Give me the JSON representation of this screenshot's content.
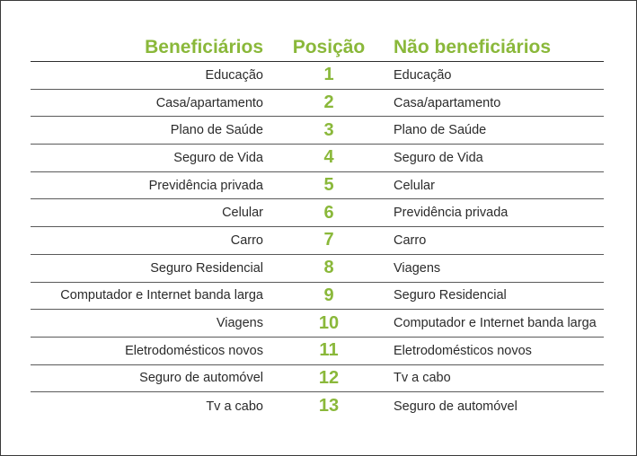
{
  "table": {
    "headers": {
      "left": "Beneficiários",
      "middle": "Posição",
      "right": "Não beneficiários"
    },
    "rows": [
      {
        "left": "Educação",
        "rank": "1",
        "right": "Educação"
      },
      {
        "left": "Casa/apartamento",
        "rank": "2",
        "right": "Casa/apartamento"
      },
      {
        "left": "Plano de Saúde",
        "rank": "3",
        "right": "Plano de Saúde"
      },
      {
        "left": "Seguro de Vida",
        "rank": "4",
        "right": "Seguro de Vida"
      },
      {
        "left": "Previdência privada",
        "rank": "5",
        "right": "Celular"
      },
      {
        "left": "Celular",
        "rank": "6",
        "right": "Previdência privada"
      },
      {
        "left": "Carro",
        "rank": "7",
        "right": "Carro"
      },
      {
        "left": "Seguro Residencial",
        "rank": "8",
        "right": "Viagens"
      },
      {
        "left": "Computador e Internet banda larga",
        "rank": "9",
        "right": "Seguro Residencial"
      },
      {
        "left": "Viagens",
        "rank": "10",
        "right": "Computador e Internet banda larga"
      },
      {
        "left": "Eletrodomésticos novos",
        "rank": "11",
        "right": "Eletrodomésticos novos"
      },
      {
        "left": "Seguro de automóvel",
        "rank": "12",
        "right": "Tv a cabo"
      },
      {
        "left": "Tv a cabo",
        "rank": "13",
        "right": "Seguro de automóvel"
      }
    ]
  },
  "colors": {
    "accent": "#8ab83a",
    "text": "#2b2b2b",
    "rule": "#2e2e2e"
  }
}
